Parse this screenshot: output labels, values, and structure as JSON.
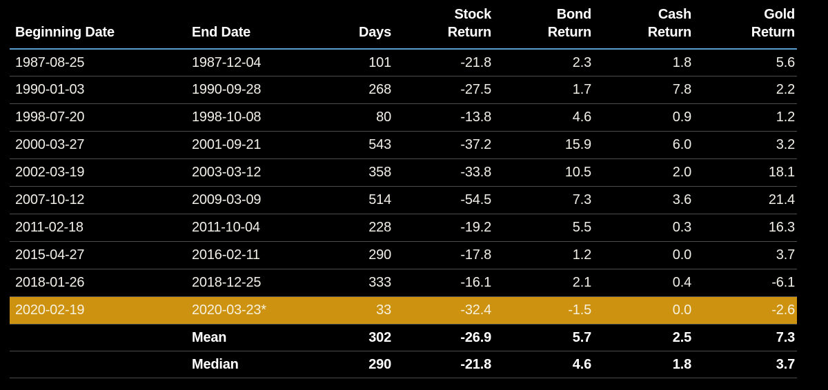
{
  "colors": {
    "background": "#000000",
    "body_text": "#f2efe8",
    "header_text": "#ffffff",
    "header_underline": "#5b9ecf",
    "row_divider": "#4f4f4f",
    "highlight_background": "#cd9310",
    "highlight_text": "#f6f0dd",
    "summary_text": "#ffffff"
  },
  "table": {
    "columns": [
      {
        "key": "beginning_date",
        "label": "Beginning Date",
        "label_lines": [
          "Beginning Date"
        ],
        "align": "left"
      },
      {
        "key": "end_date",
        "label": "End Date",
        "label_lines": [
          "End Date"
        ],
        "align": "left"
      },
      {
        "key": "days",
        "label": "Days",
        "label_lines": [
          "Days"
        ],
        "align": "right"
      },
      {
        "key": "stock_return",
        "label": "Stock Return",
        "label_lines": [
          "Stock",
          "Return"
        ],
        "align": "right"
      },
      {
        "key": "bond_return",
        "label": "Bond Return",
        "label_lines": [
          "Bond",
          "Return"
        ],
        "align": "right"
      },
      {
        "key": "cash_return",
        "label": "Cash Return",
        "label_lines": [
          "Cash",
          "Return"
        ],
        "align": "right"
      },
      {
        "key": "gold_return",
        "label": "Gold Return",
        "label_lines": [
          "Gold",
          "Return"
        ],
        "align": "right"
      }
    ],
    "rows": [
      {
        "cells": [
          "1987-08-25",
          "1987-12-04",
          "101",
          "-21.8",
          "2.3",
          "1.8",
          "5.6"
        ],
        "highlighted": false
      },
      {
        "cells": [
          "1990-01-03",
          "1990-09-28",
          "268",
          "-27.5",
          "1.7",
          "7.8",
          "2.2"
        ],
        "highlighted": false
      },
      {
        "cells": [
          "1998-07-20",
          "1998-10-08",
          "80",
          "-13.8",
          "4.6",
          "0.9",
          "1.2"
        ],
        "highlighted": false
      },
      {
        "cells": [
          "2000-03-27",
          "2001-09-21",
          "543",
          "-37.2",
          "15.9",
          "6.0",
          "3.2"
        ],
        "highlighted": false
      },
      {
        "cells": [
          "2002-03-19",
          "2003-03-12",
          "358",
          "-33.8",
          "10.5",
          "2.0",
          "18.1"
        ],
        "highlighted": false
      },
      {
        "cells": [
          "2007-10-12",
          "2009-03-09",
          "514",
          "-54.5",
          "7.3",
          "3.6",
          "21.4"
        ],
        "highlighted": false
      },
      {
        "cells": [
          "2011-02-18",
          "2011-10-04",
          "228",
          "-19.2",
          "5.5",
          "0.3",
          "16.3"
        ],
        "highlighted": false
      },
      {
        "cells": [
          "2015-04-27",
          "2016-02-11",
          "290",
          "-17.8",
          "1.2",
          "0.0",
          "3.7"
        ],
        "highlighted": false
      },
      {
        "cells": [
          "2018-01-26",
          "2018-12-25",
          "333",
          "-16.1",
          "2.1",
          "0.4",
          "-6.1"
        ],
        "highlighted": false
      },
      {
        "cells": [
          "2020-02-19",
          "2020-03-23*",
          "33",
          "-32.4",
          "-1.5",
          "0.0",
          "-2.6"
        ],
        "highlighted": true
      }
    ],
    "summary_rows": [
      {
        "cells": [
          "",
          "Mean",
          "302",
          "-26.9",
          "5.7",
          "2.5",
          "7.3"
        ]
      },
      {
        "cells": [
          "",
          "Median",
          "290",
          "-21.8",
          "4.6",
          "1.8",
          "3.7"
        ]
      }
    ]
  },
  "chart_data": {
    "type": "table",
    "columns": [
      "Beginning Date",
      "End Date",
      "Days",
      "Stock Return",
      "Bond Return",
      "Cash Return",
      "Gold Return"
    ],
    "rows": [
      [
        "1987-08-25",
        "1987-12-04",
        101,
        -21.8,
        2.3,
        1.8,
        5.6
      ],
      [
        "1990-01-03",
        "1990-09-28",
        268,
        -27.5,
        1.7,
        7.8,
        2.2
      ],
      [
        "1998-07-20",
        "1998-10-08",
        80,
        -13.8,
        4.6,
        0.9,
        1.2
      ],
      [
        "2000-03-27",
        "2001-09-21",
        543,
        -37.2,
        15.9,
        6.0,
        3.2
      ],
      [
        "2002-03-19",
        "2003-03-12",
        358,
        -33.8,
        10.5,
        2.0,
        18.1
      ],
      [
        "2007-10-12",
        "2009-03-09",
        514,
        -54.5,
        7.3,
        3.6,
        21.4
      ],
      [
        "2011-02-18",
        "2011-10-04",
        228,
        -19.2,
        5.5,
        0.3,
        16.3
      ],
      [
        "2015-04-27",
        "2016-02-11",
        290,
        -17.8,
        1.2,
        0.0,
        3.7
      ],
      [
        "2018-01-26",
        "2018-12-25",
        333,
        -16.1,
        2.1,
        0.4,
        -6.1
      ],
      [
        "2020-02-19",
        "2020-03-23*",
        33,
        -32.4,
        -1.5,
        0.0,
        -2.6
      ]
    ],
    "highlighted_row_index": 9,
    "summary": {
      "mean": {
        "days": 302,
        "stock_return": -26.9,
        "bond_return": 5.7,
        "cash_return": 2.5,
        "gold_return": 7.3
      },
      "median": {
        "days": 290,
        "stock_return": -21.8,
        "bond_return": 4.6,
        "cash_return": 1.8,
        "gold_return": 3.7
      }
    },
    "footnote_marker": "*"
  }
}
